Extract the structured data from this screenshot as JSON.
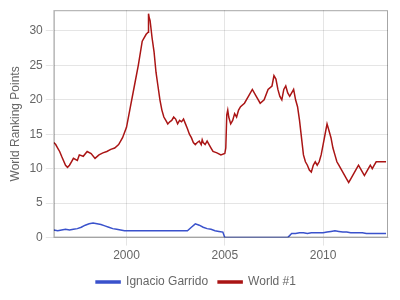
{
  "chart_data": {
    "type": "line",
    "ylabel": "World Ranking Points",
    "xlim": [
      1996.3,
      2013.3
    ],
    "ylim": [
      0,
      33
    ],
    "xticks": [
      2000,
      2005,
      2010
    ],
    "yticks": [
      0,
      5,
      10,
      15,
      20,
      25,
      30
    ],
    "grid": true,
    "legend": "bottom",
    "series": [
      {
        "name": "Ignacio Garrido",
        "color": "#3a52cc",
        "x": [
          1996.3,
          1996.5,
          1996.7,
          1996.9,
          1997.1,
          1997.3,
          1997.5,
          1997.7,
          1997.9,
          1998.1,
          1998.3,
          1998.5,
          1998.7,
          1998.9,
          1999.1,
          1999.3,
          1999.5,
          1999.7,
          1999.9,
          2000.1,
          2000.3,
          2000.5,
          2000.7,
          2000.9,
          2001.1,
          2001.3,
          2001.5,
          2001.7,
          2001.9,
          2002.1,
          2002.3,
          2002.5,
          2002.7,
          2002.9,
          2003.1,
          2003.3,
          2003.5,
          2003.7,
          2003.9,
          2004.1,
          2004.3,
          2004.5,
          2004.7,
          2004.9,
          2005.0,
          2008.2,
          2008.4,
          2008.6,
          2008.8,
          2009.0,
          2009.2,
          2009.4,
          2009.6,
          2009.8,
          2010.0,
          2010.2,
          2010.4,
          2010.6,
          2010.8,
          2011.0,
          2011.2,
          2011.4,
          2011.6,
          2011.8,
          2012.0,
          2012.2,
          2012.4,
          2012.6,
          2012.8,
          2013.0,
          2013.2
        ],
        "values": [
          1.1,
          1.0,
          1.1,
          1.2,
          1.1,
          1.2,
          1.3,
          1.5,
          1.8,
          2.0,
          2.1,
          2.0,
          1.9,
          1.7,
          1.5,
          1.3,
          1.2,
          1.1,
          1.0,
          1.0,
          1.0,
          1.0,
          1.0,
          1.0,
          1.0,
          1.0,
          1.0,
          1.0,
          1.0,
          1.0,
          1.0,
          1.0,
          1.0,
          1.0,
          1.0,
          1.5,
          2.0,
          1.8,
          1.5,
          1.3,
          1.2,
          1.0,
          0.9,
          0.8,
          0.0,
          0.0,
          0.6,
          0.6,
          0.7,
          0.7,
          0.6,
          0.7,
          0.7,
          0.7,
          0.7,
          0.8,
          0.9,
          1.0,
          0.9,
          0.8,
          0.8,
          0.7,
          0.7,
          0.7,
          0.7,
          0.6,
          0.6,
          0.6,
          0.6,
          0.6,
          0.6
        ]
      },
      {
        "name": "World #1",
        "color": "#aa1515",
        "x": [
          1996.3,
          1996.4,
          1996.5,
          1996.6,
          1996.7,
          1996.9,
          1997.0,
          1997.1,
          1997.2,
          1997.3,
          1997.5,
          1997.6,
          1997.8,
          1998.0,
          1998.2,
          1998.4,
          1998.6,
          1998.8,
          1999.0,
          1999.2,
          1999.4,
          1999.6,
          1999.8,
          2000.0,
          2000.2,
          2000.4,
          2000.6,
          2000.8,
          2001.0,
          2001.1,
          2001.12,
          2001.15,
          2001.2,
          2001.3,
          2001.4,
          2001.5,
          2001.6,
          2001.7,
          2001.8,
          2001.9,
          2002.0,
          2002.1,
          2002.2,
          2002.3,
          2002.4,
          2002.5,
          2002.6,
          2002.7,
          2002.8,
          2002.9,
          2003.0,
          2003.1,
          2003.2,
          2003.3,
          2003.4,
          2003.5,
          2003.6,
          2003.7,
          2003.8,
          2003.85,
          2003.9,
          2004.0,
          2004.1,
          2004.2,
          2004.3,
          2004.4,
          2004.6,
          2004.8,
          2005.0,
          2005.05,
          2005.1,
          2005.15,
          2005.2,
          2005.3,
          2005.4,
          2005.5,
          2005.6,
          2005.7,
          2005.8,
          2006.0,
          2006.2,
          2006.4,
          2006.6,
          2006.8,
          2007.0,
          2007.2,
          2007.4,
          2007.5,
          2007.6,
          2007.7,
          2007.8,
          2007.9,
          2008.0,
          2008.1,
          2008.2,
          2008.3,
          2008.4,
          2008.5,
          2008.6,
          2008.7,
          2008.8,
          2008.9,
          2009.0,
          2009.1,
          2009.2,
          2009.3,
          2009.4,
          2009.5,
          2009.6,
          2009.7,
          2009.8,
          2009.9,
          2010.0,
          2010.1,
          2010.2,
          2010.3,
          2010.4,
          2010.5,
          2010.6,
          2010.7,
          2010.8,
          2010.9,
          2011.0,
          2011.1,
          2011.2,
          2011.3,
          2011.4,
          2011.5,
          2011.6,
          2011.7,
          2011.8,
          2011.9,
          2012.0,
          2012.1,
          2012.2,
          2012.3,
          2012.4,
          2012.5,
          2012.6,
          2012.7,
          2012.8,
          2013.0,
          2013.2
        ],
        "values": [
          13.8,
          13.5,
          13.0,
          12.5,
          11.8,
          10.5,
          10.2,
          10.5,
          11.0,
          11.5,
          11.2,
          12.0,
          11.8,
          12.5,
          12.2,
          11.5,
          12.0,
          12.3,
          12.5,
          12.8,
          13.0,
          13.5,
          14.5,
          16.0,
          19.0,
          22.0,
          25.0,
          28.5,
          29.5,
          29.8,
          32.5,
          32.0,
          31.5,
          29.0,
          27.0,
          24.0,
          22.0,
          20.0,
          18.5,
          17.5,
          17.0,
          16.5,
          16.8,
          17.0,
          17.5,
          17.2,
          16.5,
          17.0,
          16.8,
          17.2,
          16.5,
          15.8,
          15.0,
          14.5,
          13.8,
          13.5,
          13.8,
          14.0,
          13.5,
          14.2,
          13.8,
          13.5,
          14.0,
          13.5,
          13.0,
          12.5,
          12.3,
          12.0,
          12.2,
          13.0,
          17.8,
          18.5,
          17.5,
          16.5,
          17.0,
          18.0,
          17.5,
          18.5,
          19.0,
          19.5,
          20.5,
          21.5,
          20.5,
          19.5,
          20.0,
          21.5,
          22.0,
          23.5,
          23.0,
          21.5,
          20.5,
          20.0,
          21.5,
          22.0,
          21.0,
          20.5,
          21.0,
          21.5,
          20.0,
          19.0,
          17.0,
          14.5,
          12.0,
          11.0,
          10.5,
          9.8,
          9.5,
          10.5,
          11.0,
          10.5,
          11.0,
          12.0,
          13.5,
          15.0,
          16.5,
          15.5,
          14.5,
          13.0,
          12.0,
          11.0,
          10.5,
          10.0,
          9.5,
          9.0,
          8.5,
          8.0,
          8.5,
          9.0,
          9.5,
          10.0,
          10.5,
          10.0,
          9.5,
          9.0,
          9.5,
          10.0,
          10.5,
          10.0,
          10.5,
          11.0,
          11.0,
          11.0,
          11.0
        ]
      }
    ]
  }
}
